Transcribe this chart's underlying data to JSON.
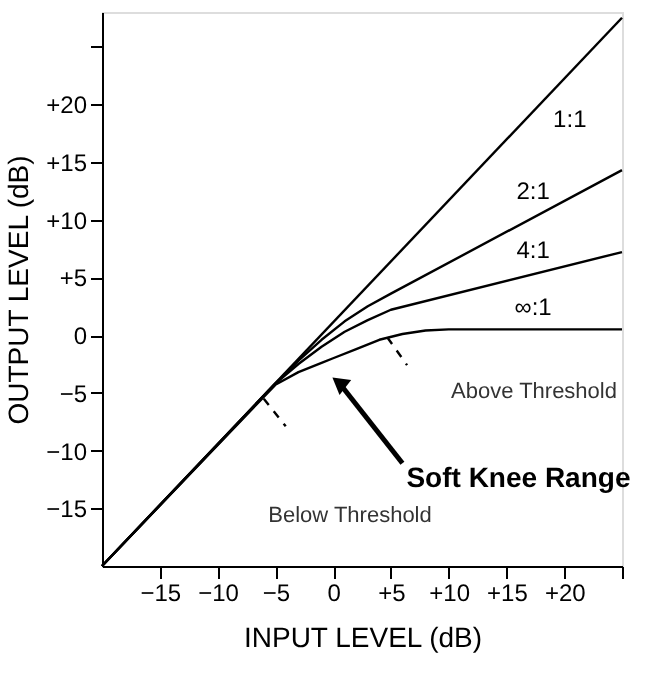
{
  "chart_data": {
    "type": "line",
    "xlabel": "INPUT LEVEL (dB)",
    "ylabel": "OUTPUT LEVEL (dB)",
    "xlim": [
      -20,
      25
    ],
    "ylim": [
      -20,
      28
    ],
    "xticks": [
      {
        "value": -15,
        "label": "−15"
      },
      {
        "value": -10,
        "label": "−10"
      },
      {
        "value": -5,
        "label": "−5"
      },
      0,
      {
        "value": 5,
        "label": "+5"
      },
      {
        "value": 10,
        "label": "+10"
      },
      {
        "value": 15,
        "label": "+15"
      },
      {
        "value": 20,
        "label": "+20"
      },
      {
        "value": 25,
        "label": null
      }
    ],
    "yticks": [
      {
        "value": -15,
        "label": "−15"
      },
      {
        "value": -10,
        "label": "−10"
      },
      {
        "value": -5,
        "label": "−5"
      },
      0,
      {
        "value": 5,
        "label": "+5"
      },
      {
        "value": 10,
        "label": "+10"
      },
      {
        "value": 15,
        "label": "+15"
      },
      {
        "value": 20,
        "label": "+20"
      },
      {
        "value": 25,
        "label": null
      }
    ],
    "grid": false,
    "legend": false,
    "marker": "none",
    "line_style": "solid",
    "series": [
      {
        "name": "1:1",
        "color": "#000000",
        "x": [
          -20,
          25
        ],
        "values": [
          -20,
          27.5
        ]
      },
      {
        "name": "2:1",
        "color": "#000000",
        "x": [
          -20,
          -5,
          -3,
          -1,
          1,
          3,
          5,
          25
        ],
        "values": [
          -20,
          -4.2,
          -2.2,
          -0.4,
          1.2,
          2.5,
          3.6,
          14.3
        ]
      },
      {
        "name": "4:1",
        "color": "#000000",
        "x": [
          -20,
          -5,
          -3,
          -1,
          1,
          3,
          5,
          25
        ],
        "values": [
          -20,
          -4.2,
          -2.5,
          -1.0,
          0.3,
          1.3,
          2.2,
          7.2
        ]
      },
      {
        "name": "∞:1",
        "color": "#000000",
        "x": [
          -20,
          -5,
          -3,
          -1,
          0,
          2,
          4,
          6,
          8,
          10,
          25
        ],
        "values": [
          -20,
          -4.3,
          -3.2,
          -2.4,
          -2.0,
          -1.2,
          -0.4,
          0.1,
          0.4,
          0.5,
          0.5
        ]
      },
      {
        "color": "#000000",
        "line_style": "dashed",
        "x": [
          -6.0,
          -4.1
        ],
        "values": [
          -5.5,
          -7.9
        ]
      },
      {
        "color": "#000000",
        "line_style": "dashed",
        "x": [
          4.7,
          6.4
        ],
        "values": [
          -0.2,
          -2.6
        ]
      }
    ],
    "annotations": [
      {
        "text": "Soft Knee Range",
        "x": 0.5,
        "y": -4.1
      },
      "Above Threshold",
      "Below Threshold"
    ]
  }
}
